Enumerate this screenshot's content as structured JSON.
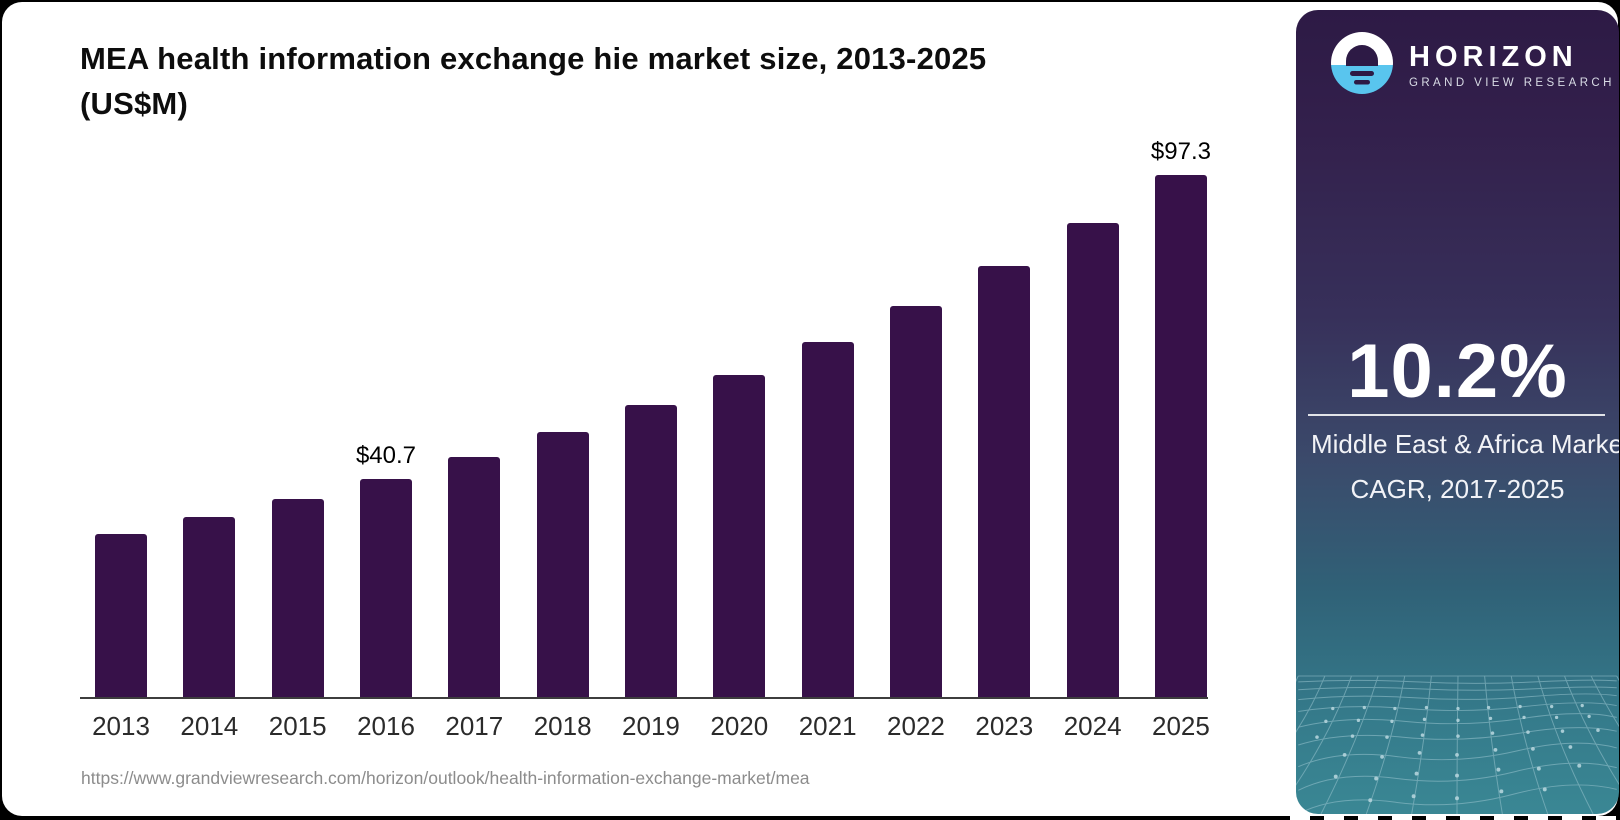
{
  "header": {
    "title_line1": "MEA health information exchange hie market size, 2013-2025",
    "title_line2": "(US$M)"
  },
  "chart_data": {
    "type": "bar",
    "title": "MEA health information exchange hie market size, 2013-2025 (US$M)",
    "categories": [
      2013,
      2014,
      2015,
      2016,
      2017,
      2018,
      2019,
      2020,
      2021,
      2022,
      2023,
      2024,
      2025
    ],
    "values": [
      30.4,
      33.5,
      36.9,
      40.7,
      44.8,
      49.4,
      54.4,
      60.0,
      66.1,
      72.8,
      80.3,
      88.4,
      97.3
    ],
    "data_labels": {
      "2016": "$40.7",
      "2025": "$97.3"
    },
    "xlabel": "",
    "ylabel": "",
    "ylim": [
      0,
      100
    ],
    "grid": false,
    "legend": "none",
    "bar_color": "#371149",
    "axis_line_color": "#3d3d3d"
  },
  "footer": {
    "source_url": "https://www.grandviewresearch.com/horizon/outlook/health-information-exchange-market/mea"
  },
  "sidebar": {
    "brand": {
      "name": "HORIZON",
      "subtitle": "GRAND VIEW RESEARCH",
      "logo_icon": "horizon-sunset-icon",
      "logo_blue": "#59c5ee",
      "logo_dark": "#2d1a45"
    },
    "stat": {
      "value": "10.2%",
      "label_line1": "Middle East & Africa Market",
      "label_line2": "CAGR, 2017-2025"
    },
    "colors": {
      "top": "#2d1a45",
      "bottom": "#3a8794",
      "mesh_line": "#8fbdc8"
    }
  }
}
